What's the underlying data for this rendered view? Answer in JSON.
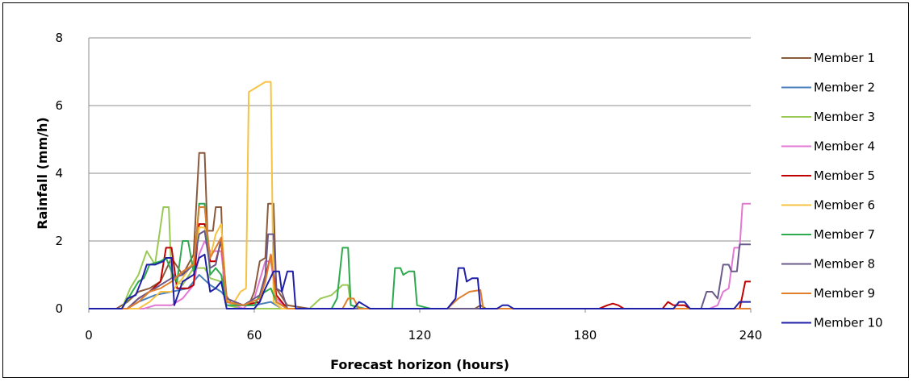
{
  "chart_data": {
    "type": "line",
    "title": "",
    "xlabel": "Forecast horizon (hours)",
    "ylabel": "Rainfall (mm/h)",
    "xlim": [
      0,
      240
    ],
    "ylim": [
      0,
      8
    ],
    "xticks": [
      0,
      60,
      120,
      180,
      240
    ],
    "yticks": [
      0,
      2,
      4,
      6,
      8
    ],
    "grid": "horizontal",
    "legend_position": "right",
    "series": [
      {
        "name": "Member 1",
        "color": "#8B5A3C",
        "points": [
          [
            0,
            0
          ],
          [
            10,
            0
          ],
          [
            14,
            0.2
          ],
          [
            18,
            0.5
          ],
          [
            22,
            0.6
          ],
          [
            26,
            0.8
          ],
          [
            30,
            1.5
          ],
          [
            34,
            1.0
          ],
          [
            38,
            1.6
          ],
          [
            40,
            4.6
          ],
          [
            42,
            4.6
          ],
          [
            43,
            2.3
          ],
          [
            45,
            2.3
          ],
          [
            46,
            3.0
          ],
          [
            48,
            3.0
          ],
          [
            49,
            0.5
          ],
          [
            52,
            0.1
          ],
          [
            58,
            0.1
          ],
          [
            60,
            0.5
          ],
          [
            62,
            1.4
          ],
          [
            64,
            1.5
          ],
          [
            65,
            3.1
          ],
          [
            67,
            3.1
          ],
          [
            68,
            0.6
          ],
          [
            72,
            0.1
          ],
          [
            80,
            0
          ],
          [
            140,
            0
          ],
          [
            142,
            0.1
          ],
          [
            144,
            0
          ],
          [
            240,
            0
          ]
        ]
      },
      {
        "name": "Member 2",
        "color": "#4A7EBB",
        "points": [
          [
            0,
            0
          ],
          [
            14,
            0
          ],
          [
            18,
            0.2
          ],
          [
            24,
            0.4
          ],
          [
            30,
            0.5
          ],
          [
            36,
            0.6
          ],
          [
            40,
            1.0
          ],
          [
            44,
            0.7
          ],
          [
            48,
            0.5
          ],
          [
            52,
            0.1
          ],
          [
            60,
            0.1
          ],
          [
            66,
            0.2
          ],
          [
            70,
            0
          ],
          [
            240,
            0
          ]
        ]
      },
      {
        "name": "Member 3",
        "color": "#98C954",
        "points": [
          [
            0,
            0
          ],
          [
            12,
            0
          ],
          [
            15,
            0.6
          ],
          [
            18,
            1.0
          ],
          [
            21,
            1.7
          ],
          [
            24,
            1.3
          ],
          [
            27,
            3.0
          ],
          [
            29,
            3.0
          ],
          [
            30,
            0.9
          ],
          [
            34,
            0.7
          ],
          [
            38,
            1.2
          ],
          [
            42,
            1.2
          ],
          [
            44,
            0.9
          ],
          [
            48,
            0.8
          ],
          [
            50,
            0.1
          ],
          [
            56,
            0
          ],
          [
            80,
            0
          ],
          [
            84,
            0.3
          ],
          [
            88,
            0.4
          ],
          [
            92,
            0.7
          ],
          [
            94,
            0.7
          ],
          [
            95,
            0.1
          ],
          [
            100,
            0
          ],
          [
            240,
            0
          ]
        ]
      },
      {
        "name": "Member 4",
        "color": "#E377D4",
        "points": [
          [
            0,
            0
          ],
          [
            20,
            0
          ],
          [
            24,
            0.1
          ],
          [
            30,
            0.1
          ],
          [
            34,
            0.3
          ],
          [
            38,
            0.7
          ],
          [
            40,
            1.6
          ],
          [
            42,
            2.0
          ],
          [
            44,
            1.7
          ],
          [
            48,
            1.7
          ],
          [
            50,
            0.2
          ],
          [
            56,
            0
          ],
          [
            60,
            0.3
          ],
          [
            64,
            1.4
          ],
          [
            66,
            1.4
          ],
          [
            68,
            0.3
          ],
          [
            72,
            0
          ],
          [
            225,
            0
          ],
          [
            228,
            0.1
          ],
          [
            230,
            0.5
          ],
          [
            232,
            0.6
          ],
          [
            234,
            1.8
          ],
          [
            236,
            1.8
          ],
          [
            237,
            3.1
          ],
          [
            240,
            3.1
          ]
        ]
      },
      {
        "name": "Member 5",
        "color": "#C00000",
        "points": [
          [
            0,
            0
          ],
          [
            14,
            0
          ],
          [
            18,
            0.3
          ],
          [
            22,
            0.5
          ],
          [
            26,
            0.8
          ],
          [
            28,
            1.8
          ],
          [
            30,
            1.8
          ],
          [
            32,
            0.6
          ],
          [
            36,
            0.6
          ],
          [
            38,
            0.7
          ],
          [
            40,
            2.5
          ],
          [
            42,
            2.5
          ],
          [
            44,
            1.4
          ],
          [
            46,
            1.4
          ],
          [
            48,
            2.0
          ],
          [
            50,
            0.3
          ],
          [
            56,
            0.1
          ],
          [
            62,
            0.2
          ],
          [
            66,
            1.6
          ],
          [
            68,
            0.4
          ],
          [
            72,
            0
          ],
          [
            185,
            0
          ],
          [
            188,
            0.1
          ],
          [
            190,
            0.15
          ],
          [
            192,
            0.1
          ],
          [
            194,
            0
          ],
          [
            208,
            0
          ],
          [
            210,
            0.2
          ],
          [
            212,
            0.1
          ],
          [
            216,
            0.1
          ],
          [
            218,
            0
          ],
          [
            236,
            0
          ],
          [
            237,
            0.4
          ],
          [
            238,
            0.8
          ],
          [
            240,
            0.8
          ]
        ]
      },
      {
        "name": "Member 6",
        "color": "#F6C342",
        "points": [
          [
            0,
            0
          ],
          [
            18,
            0
          ],
          [
            22,
            0.2
          ],
          [
            26,
            0.5
          ],
          [
            30,
            0.5
          ],
          [
            34,
            0.9
          ],
          [
            38,
            1.4
          ],
          [
            40,
            2.4
          ],
          [
            42,
            2.4
          ],
          [
            44,
            1.5
          ],
          [
            46,
            2.2
          ],
          [
            48,
            2.5
          ],
          [
            50,
            0.3
          ],
          [
            52,
            0.1
          ],
          [
            55,
            0.5
          ],
          [
            57,
            0.6
          ],
          [
            58,
            6.4
          ],
          [
            60,
            6.5
          ],
          [
            62,
            6.6
          ],
          [
            64,
            6.7
          ],
          [
            66,
            6.7
          ],
          [
            67,
            0.2
          ],
          [
            70,
            0
          ],
          [
            240,
            0
          ]
        ]
      },
      {
        "name": "Member 7",
        "color": "#2DAA4E",
        "points": [
          [
            0,
            0
          ],
          [
            12,
            0
          ],
          [
            15,
            0.4
          ],
          [
            18,
            0.8
          ],
          [
            20,
            0.9
          ],
          [
            22,
            1.3
          ],
          [
            26,
            1.4
          ],
          [
            28,
            1.5
          ],
          [
            30,
            1.1
          ],
          [
            32,
            0.8
          ],
          [
            34,
            2.0
          ],
          [
            36,
            2.0
          ],
          [
            38,
            1.1
          ],
          [
            40,
            3.1
          ],
          [
            42,
            3.1
          ],
          [
            44,
            1.0
          ],
          [
            46,
            1.2
          ],
          [
            48,
            1.0
          ],
          [
            50,
            0.1
          ],
          [
            60,
            0.1
          ],
          [
            62,
            0.4
          ],
          [
            66,
            0.6
          ],
          [
            68,
            0.2
          ],
          [
            72,
            0
          ],
          [
            88,
            0
          ],
          [
            90,
            0.3
          ],
          [
            92,
            1.8
          ],
          [
            94,
            1.8
          ],
          [
            95,
            0.1
          ],
          [
            100,
            0
          ],
          [
            110,
            0
          ],
          [
            111,
            1.2
          ],
          [
            113,
            1.2
          ],
          [
            114,
            1.0
          ],
          [
            116,
            1.1
          ],
          [
            118,
            1.1
          ],
          [
            119,
            0.1
          ],
          [
            124,
            0
          ],
          [
            240,
            0
          ]
        ]
      },
      {
        "name": "Member 8",
        "color": "#6A5A8A",
        "points": [
          [
            0,
            0
          ],
          [
            14,
            0
          ],
          [
            18,
            0.3
          ],
          [
            22,
            0.5
          ],
          [
            26,
            0.7
          ],
          [
            30,
            0.9
          ],
          [
            34,
            1.0
          ],
          [
            38,
            1.3
          ],
          [
            40,
            2.2
          ],
          [
            42,
            2.3
          ],
          [
            44,
            1.2
          ],
          [
            46,
            1.3
          ],
          [
            48,
            2.1
          ],
          [
            50,
            0.3
          ],
          [
            56,
            0.1
          ],
          [
            62,
            0.4
          ],
          [
            64,
            1.0
          ],
          [
            65,
            2.2
          ],
          [
            67,
            2.2
          ],
          [
            68,
            0.6
          ],
          [
            70,
            0.5
          ],
          [
            72,
            0
          ],
          [
            222,
            0
          ],
          [
            224,
            0.5
          ],
          [
            226,
            0.5
          ],
          [
            228,
            0.3
          ],
          [
            230,
            1.3
          ],
          [
            232,
            1.3
          ],
          [
            233,
            1.1
          ],
          [
            235,
            1.1
          ],
          [
            236,
            1.9
          ],
          [
            240,
            1.9
          ]
        ]
      },
      {
        "name": "Member 9",
        "color": "#E07E2C",
        "points": [
          [
            0,
            0
          ],
          [
            14,
            0
          ],
          [
            18,
            0.2
          ],
          [
            22,
            0.5
          ],
          [
            26,
            0.6
          ],
          [
            30,
            0.8
          ],
          [
            34,
            1.1
          ],
          [
            38,
            1.3
          ],
          [
            40,
            3.0
          ],
          [
            42,
            3.0
          ],
          [
            44,
            1.5
          ],
          [
            46,
            1.8
          ],
          [
            48,
            2.1
          ],
          [
            50,
            0.2
          ],
          [
            56,
            0.1
          ],
          [
            62,
            0.3
          ],
          [
            64,
            0.8
          ],
          [
            66,
            1.6
          ],
          [
            68,
            0.2
          ],
          [
            72,
            0
          ],
          [
            92,
            0
          ],
          [
            94,
            0.3
          ],
          [
            96,
            0.3
          ],
          [
            98,
            0
          ],
          [
            130,
            0
          ],
          [
            134,
            0.3
          ],
          [
            136,
            0.4
          ],
          [
            138,
            0.5
          ],
          [
            142,
            0.55
          ],
          [
            143,
            0
          ],
          [
            240,
            0
          ]
        ]
      },
      {
        "name": "Member 10",
        "color": "#1F1FA8",
        "points": [
          [
            0,
            0
          ],
          [
            12,
            0
          ],
          [
            14,
            0.3
          ],
          [
            17,
            0.4
          ],
          [
            19,
            0.8
          ],
          [
            21,
            1.3
          ],
          [
            24,
            1.3
          ],
          [
            27,
            1.4
          ],
          [
            28,
            1.5
          ],
          [
            30,
            1.5
          ],
          [
            31,
            0.1
          ],
          [
            34,
            0.8
          ],
          [
            38,
            1.0
          ],
          [
            40,
            1.5
          ],
          [
            42,
            1.6
          ],
          [
            44,
            0.5
          ],
          [
            46,
            0.6
          ],
          [
            48,
            0.8
          ],
          [
            50,
            0
          ],
          [
            60,
            0
          ],
          [
            62,
            0.2
          ],
          [
            64,
            0.6
          ],
          [
            67,
            1.1
          ],
          [
            69,
            1.1
          ],
          [
            70,
            0.5
          ],
          [
            72,
            1.1
          ],
          [
            74,
            1.1
          ],
          [
            75,
            0
          ],
          [
            96,
            0
          ],
          [
            98,
            0.2
          ],
          [
            100,
            0.1
          ],
          [
            102,
            0
          ],
          [
            130,
            0
          ],
          [
            133,
            0.3
          ],
          [
            134,
            1.2
          ],
          [
            136,
            1.2
          ],
          [
            137,
            0.8
          ],
          [
            139,
            0.9
          ],
          [
            141,
            0.9
          ],
          [
            142,
            0
          ],
          [
            148,
            0
          ],
          [
            150,
            0.1
          ],
          [
            152,
            0.1
          ],
          [
            154,
            0
          ],
          [
            212,
            0
          ],
          [
            214,
            0.2
          ],
          [
            216,
            0.2
          ],
          [
            218,
            0
          ],
          [
            234,
            0
          ],
          [
            236,
            0.2
          ],
          [
            240,
            0.2
          ]
        ]
      }
    ]
  }
}
